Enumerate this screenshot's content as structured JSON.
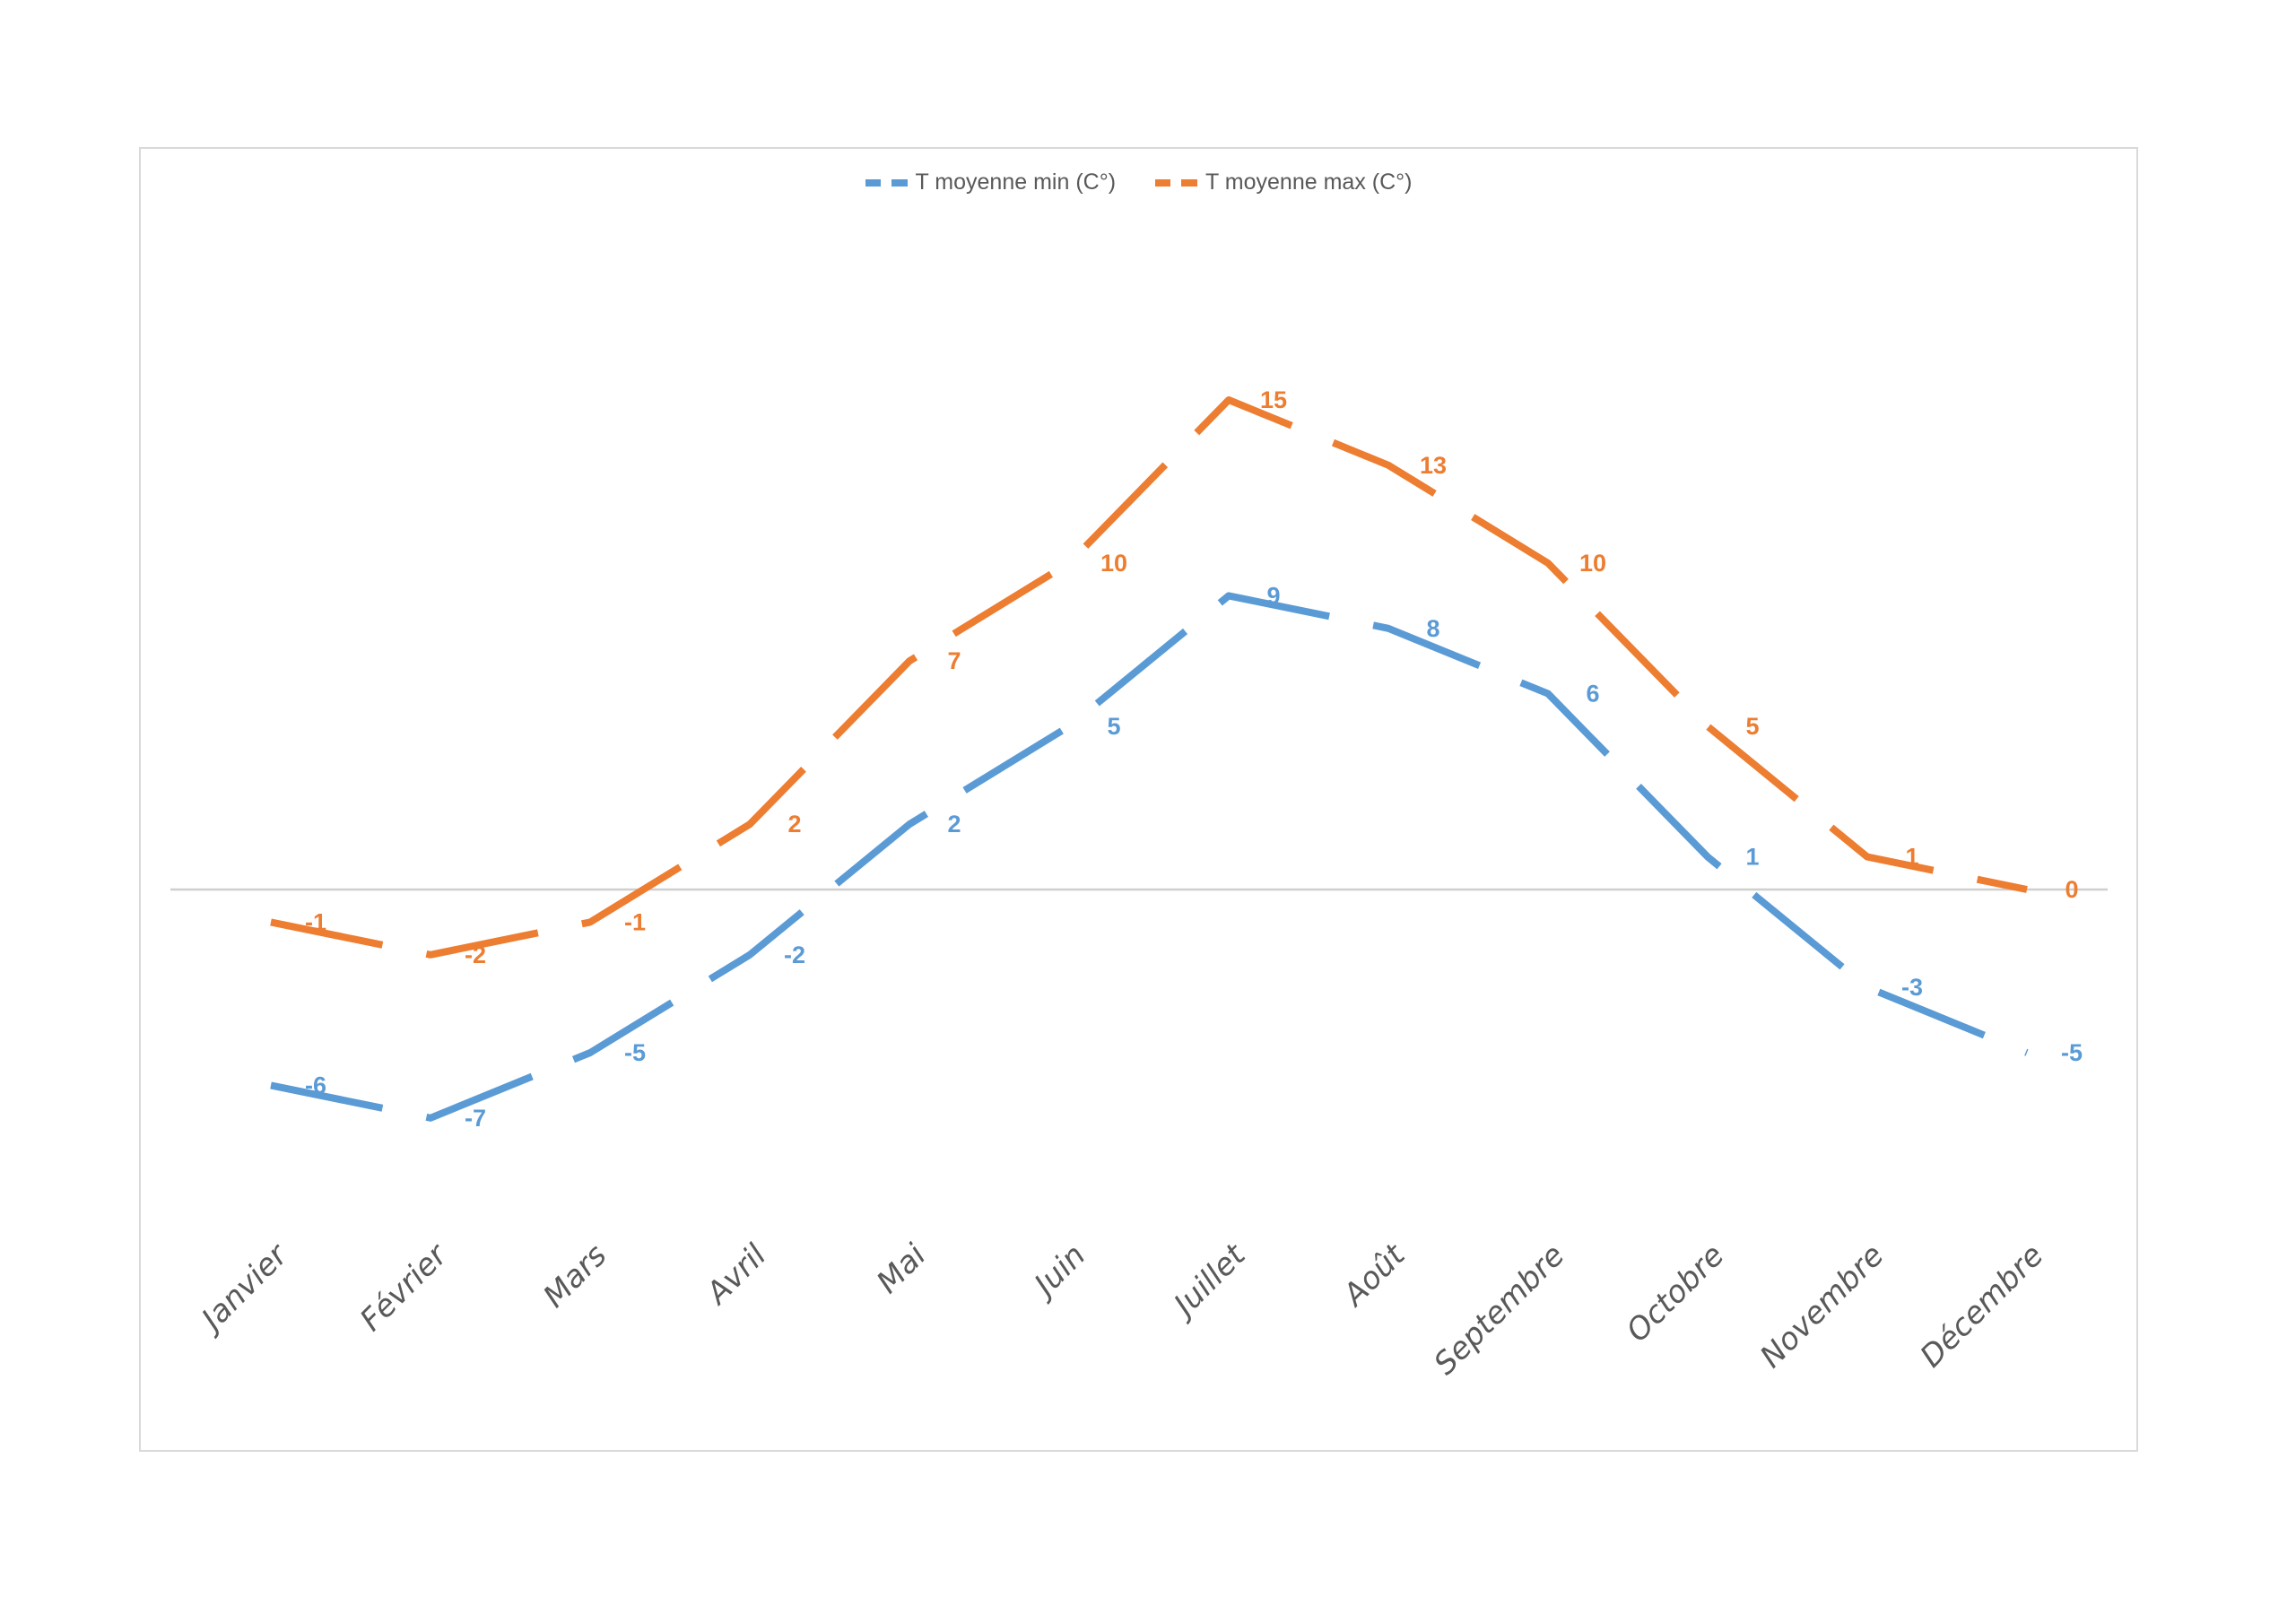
{
  "chart_data": {
    "type": "line",
    "title": "",
    "categories": [
      "Janvier",
      "Février",
      "Mars",
      "Avril",
      "Mai",
      "Juin",
      "Juillet",
      "Août",
      "Septembre",
      "Octobre",
      "Novembre",
      "Décembre"
    ],
    "series": [
      {
        "name": "T moyenne min (C°)",
        "color": "#5B9BD5",
        "values": [
          -6,
          -7,
          -5,
          -2,
          2,
          5,
          9,
          8,
          6,
          1,
          -3,
          -5
        ],
        "line_style": "dashed",
        "data_labels": true
      },
      {
        "name": "T moyenne max (C°)",
        "color": "#ED7D31",
        "values": [
          -1,
          -2,
          -1,
          2,
          7,
          10,
          15,
          13,
          10,
          5,
          1,
          0
        ],
        "line_style": "dashed",
        "data_labels": true
      }
    ],
    "legend_position": "top",
    "gridlines": false,
    "zero_axis_line": true,
    "axis_line_color": "#D0CECE",
    "frame_color": "#D9D9D9",
    "axis_text_color": "#595959",
    "xlabel": "",
    "ylabel": ""
  },
  "legend": {
    "items": [
      {
        "label": "T moyenne min (C°)",
        "color": "#5B9BD5"
      },
      {
        "label": "T moyenne max (C°)",
        "color": "#ED7D31"
      }
    ]
  }
}
